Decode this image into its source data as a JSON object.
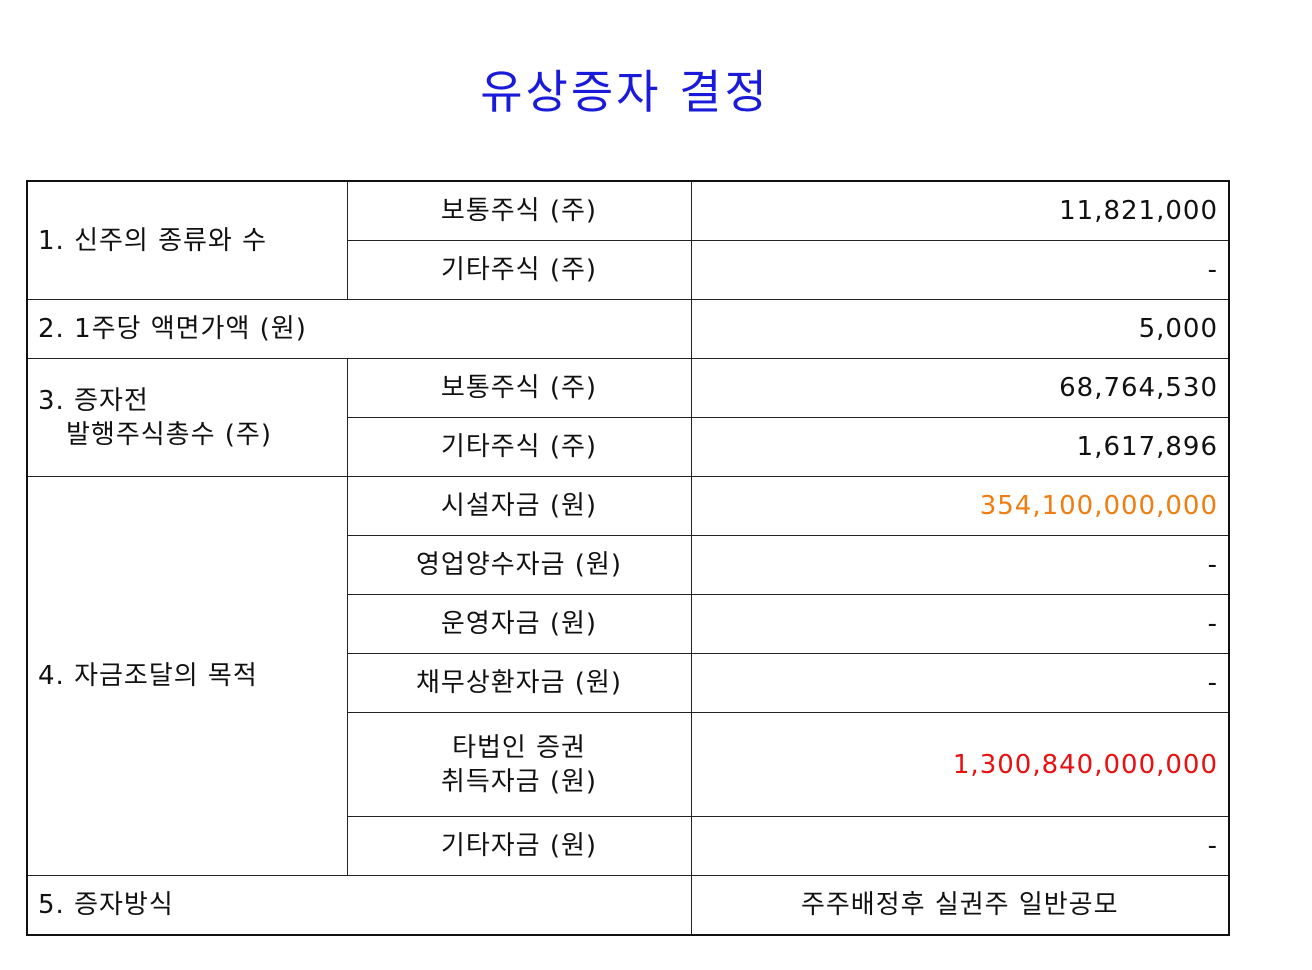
{
  "title": "유상증자 결정",
  "colors": {
    "title": "#1a1adb",
    "highlight_orange": "#f07d12",
    "highlight_red": "#e81010"
  },
  "rows": {
    "r1": {
      "section": "1. 신주의 종류와 수",
      "common_label": "보통주식 (주)",
      "common_value": "11,821,000",
      "other_label": "기타주식 (주)",
      "other_value": "-"
    },
    "r2": {
      "section": "2. 1주당 액면가액 (원)",
      "value": "5,000"
    },
    "r3": {
      "section_line1": "3. 증자전",
      "section_line2": "발행주식총수 (주)",
      "common_label": "보통주식 (주)",
      "common_value": "68,764,530",
      "other_label": "기타주식 (주)",
      "other_value": "1,617,896"
    },
    "r4": {
      "section": "4. 자금조달의 목적",
      "items": [
        {
          "label": "시설자금 (원)",
          "value": "354,100,000,000"
        },
        {
          "label": "영업양수자금 (원)",
          "value": "-"
        },
        {
          "label": "운영자금 (원)",
          "value": "-"
        },
        {
          "label": "채무상환자금 (원)",
          "value": "-"
        },
        {
          "label_line1": "타법인 증권",
          "label_line2": "취득자금 (원)",
          "value": "1,300,840,000,000"
        },
        {
          "label": "기타자금 (원)",
          "value": "-"
        }
      ]
    },
    "r5": {
      "section": "5. 증자방식",
      "value": "주주배정후 실권주 일반공모"
    }
  }
}
